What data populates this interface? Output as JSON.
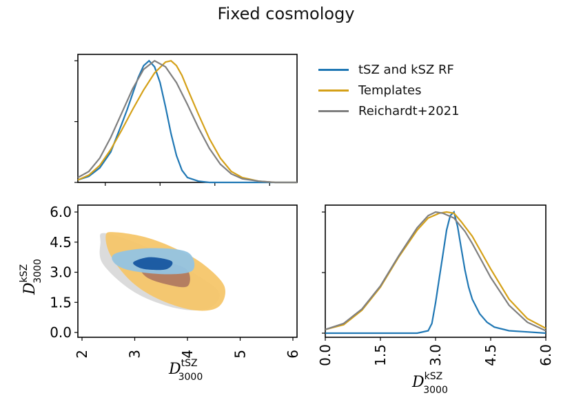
{
  "figure": {
    "title": "Fixed cosmology",
    "colors": {
      "rf": "#1f77b4",
      "templates": "#d4a017",
      "reichardt": "#7f7f7f"
    }
  },
  "legend": [
    {
      "label": "tSZ and kSZ RF",
      "color": "#1f77b4"
    },
    {
      "label": "Templates",
      "color": "#d4a017"
    },
    {
      "label": "Reichardt+2021",
      "color": "#7f7f7f"
    }
  ],
  "chart_data": [
    {
      "type": "line",
      "panel": "tSZ marginal",
      "xlim": [
        2,
        6
      ],
      "xlabel": "",
      "ylabel": "",
      "x_ticks_shown": false,
      "y_ticks_shown": false,
      "series": [
        {
          "name": "tSZ and kSZ RF",
          "color": "#1f77b4",
          "x": [
            2.0,
            2.2,
            2.4,
            2.6,
            2.8,
            2.9,
            3.0,
            3.1,
            3.2,
            3.3,
            3.4,
            3.5,
            3.6,
            3.7,
            3.8,
            3.9,
            4.0,
            4.2,
            4.4,
            6.0
          ],
          "y": [
            0.02,
            0.05,
            0.12,
            0.25,
            0.48,
            0.6,
            0.73,
            0.86,
            0.96,
            1.0,
            0.95,
            0.82,
            0.62,
            0.4,
            0.22,
            0.1,
            0.04,
            0.01,
            0.0,
            0.0
          ]
        },
        {
          "name": "Templates",
          "color": "#d4a017",
          "x": [
            2.0,
            2.2,
            2.4,
            2.6,
            2.8,
            3.0,
            3.2,
            3.4,
            3.6,
            3.7,
            3.8,
            3.9,
            4.0,
            4.2,
            4.4,
            4.6,
            4.8,
            5.0,
            5.3,
            5.6,
            6.0
          ],
          "y": [
            0.02,
            0.06,
            0.14,
            0.27,
            0.43,
            0.6,
            0.76,
            0.9,
            0.99,
            1.0,
            0.96,
            0.88,
            0.77,
            0.56,
            0.36,
            0.2,
            0.09,
            0.04,
            0.01,
            0.0,
            0.0
          ]
        },
        {
          "name": "Reichardt+2021",
          "color": "#7f7f7f",
          "x": [
            2.0,
            2.2,
            2.4,
            2.6,
            2.8,
            3.0,
            3.2,
            3.4,
            3.6,
            3.8,
            4.0,
            4.2,
            4.4,
            4.6,
            4.8,
            5.0,
            5.3,
            5.6,
            6.0
          ],
          "y": [
            0.04,
            0.09,
            0.2,
            0.37,
            0.57,
            0.77,
            0.93,
            1.0,
            0.95,
            0.82,
            0.64,
            0.45,
            0.28,
            0.15,
            0.07,
            0.03,
            0.01,
            0.0,
            0.0
          ]
        }
      ]
    },
    {
      "type": "contour",
      "panel": "2D posterior",
      "xlim": [
        2,
        6
      ],
      "ylim": [
        0,
        6
      ],
      "x_ticks": [
        "2",
        "3",
        "4",
        "5",
        "6"
      ],
      "y_ticks": [
        "0.0",
        "1.5",
        "3.0",
        "4.5",
        "6.0"
      ],
      "xlabel": "D_3000^tSZ",
      "ylabel": "D_3000^kSZ",
      "series": [
        {
          "name": "Reichardt+2021",
          "level": "95%",
          "fill": "#d9d9d9",
          "outline": [
            [
              2.4,
              4.95
            ],
            [
              2.9,
              4.6
            ],
            [
              3.5,
              3.9
            ],
            [
              4.1,
              3.0
            ],
            [
              4.6,
              2.0
            ],
            [
              4.4,
              1.2
            ],
            [
              3.8,
              1.2
            ],
            [
              3.0,
              2.0
            ],
            [
              2.4,
              3.4
            ],
            [
              2.35,
              4.5
            ]
          ]
        },
        {
          "name": "Templates",
          "level": "95%",
          "fill": "#f6c66a",
          "outline": [
            [
              2.6,
              5.0
            ],
            [
              3.2,
              4.75
            ],
            [
              3.8,
              4.15
            ],
            [
              4.3,
              3.4
            ],
            [
              4.7,
              2.3
            ],
            [
              4.6,
              1.3
            ],
            [
              4.15,
              1.1
            ],
            [
              3.5,
              1.6
            ],
            [
              2.95,
              2.5
            ],
            [
              2.55,
              3.8
            ],
            [
              2.45,
              4.8
            ]
          ]
        },
        {
          "name": "Templates",
          "level": "68%",
          "fill": "#b07a60",
          "outline": [
            [
              3.1,
              3.5
            ],
            [
              3.6,
              3.5
            ],
            [
              4.0,
              3.1
            ],
            [
              4.0,
              2.3
            ],
            [
              3.6,
              2.4
            ],
            [
              3.2,
              2.8
            ]
          ]
        },
        {
          "name": "tSZ and kSZ RF",
          "level": "95%",
          "fill": "#93c4e2",
          "outline": [
            [
              2.65,
              3.95
            ],
            [
              3.3,
              4.2
            ],
            [
              4.0,
              4.0
            ],
            [
              4.1,
              3.1
            ],
            [
              3.6,
              2.9
            ],
            [
              2.9,
              3.1
            ],
            [
              2.6,
              3.5
            ]
          ]
        },
        {
          "name": "tSZ and kSZ RF",
          "level": "68%",
          "fill": "#1656a0",
          "outline": [
            [
              3.0,
              3.55
            ],
            [
              3.3,
              3.75
            ],
            [
              3.7,
              3.55
            ],
            [
              3.6,
              3.15
            ],
            [
              3.2,
              3.15
            ],
            [
              3.0,
              3.35
            ]
          ]
        }
      ]
    },
    {
      "type": "line",
      "panel": "kSZ marginal",
      "xlim": [
        0,
        6
      ],
      "x_ticks": [
        "0.0",
        "1.5",
        "3.0",
        "4.5",
        "6.0"
      ],
      "xlabel": "D_3000^kSZ",
      "ylabel": "",
      "series": [
        {
          "name": "tSZ and kSZ RF",
          "color": "#1f77b4",
          "x": [
            0.0,
            2.5,
            2.8,
            2.9,
            3.0,
            3.1,
            3.2,
            3.3,
            3.4,
            3.5,
            3.6,
            3.7,
            3.8,
            3.9,
            4.0,
            4.2,
            4.4,
            4.6,
            5.0,
            5.5,
            6.0
          ],
          "y": [
            0.0,
            0.0,
            0.02,
            0.08,
            0.25,
            0.45,
            0.65,
            0.85,
            0.97,
            1.0,
            0.88,
            0.7,
            0.52,
            0.38,
            0.28,
            0.16,
            0.09,
            0.05,
            0.02,
            0.01,
            0.0
          ]
        },
        {
          "name": "Templates",
          "color": "#d4a017",
          "x": [
            0.0,
            0.5,
            1.0,
            1.5,
            2.0,
            2.5,
            2.8,
            3.1,
            3.3,
            3.5,
            3.7,
            4.0,
            4.5,
            5.0,
            5.5,
            6.0
          ],
          "y": [
            0.03,
            0.07,
            0.19,
            0.38,
            0.63,
            0.85,
            0.95,
            0.99,
            1.0,
            0.99,
            0.92,
            0.8,
            0.53,
            0.28,
            0.12,
            0.04
          ]
        },
        {
          "name": "Reichardt+2021",
          "color": "#7f7f7f",
          "x": [
            0.0,
            0.5,
            1.0,
            1.5,
            2.0,
            2.5,
            2.8,
            3.0,
            3.2,
            3.5,
            3.8,
            4.0,
            4.5,
            5.0,
            5.5,
            6.0
          ],
          "y": [
            0.03,
            0.08,
            0.2,
            0.39,
            0.64,
            0.87,
            0.97,
            1.0,
            0.99,
            0.95,
            0.84,
            0.74,
            0.46,
            0.23,
            0.09,
            0.02
          ]
        }
      ]
    }
  ]
}
